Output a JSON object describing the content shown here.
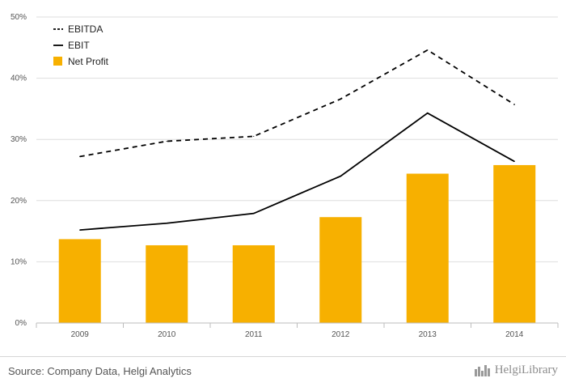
{
  "chart_data": {
    "type": "bar",
    "title": "",
    "xlabel": "",
    "ylabel": "",
    "categories": [
      "2009",
      "2010",
      "2011",
      "2012",
      "2013",
      "2014"
    ],
    "ylim": [
      0,
      50
    ],
    "yticks": [
      "0%",
      "10%",
      "20%",
      "30%",
      "40%",
      "50%"
    ],
    "yticks_values": [
      0,
      10,
      20,
      30,
      40,
      50
    ],
    "grid": true,
    "legend_position": "top-left",
    "series": [
      {
        "name": "EBITDA",
        "kind": "line-dashed",
        "color": "#000000",
        "values": [
          27.2,
          29.7,
          30.5,
          36.6,
          44.6,
          35.7
        ]
      },
      {
        "name": "EBIT",
        "kind": "line",
        "color": "#000000",
        "values": [
          15.2,
          16.3,
          17.9,
          24.0,
          34.3,
          26.4
        ]
      },
      {
        "name": "Net Profit",
        "kind": "bar",
        "color": "#F7B000",
        "values": [
          13.7,
          12.7,
          12.7,
          17.3,
          24.4,
          25.8
        ]
      }
    ]
  },
  "footer": {
    "source": "Source: Company Data, Helgi Analytics",
    "brand": "HelgiLibrary"
  }
}
